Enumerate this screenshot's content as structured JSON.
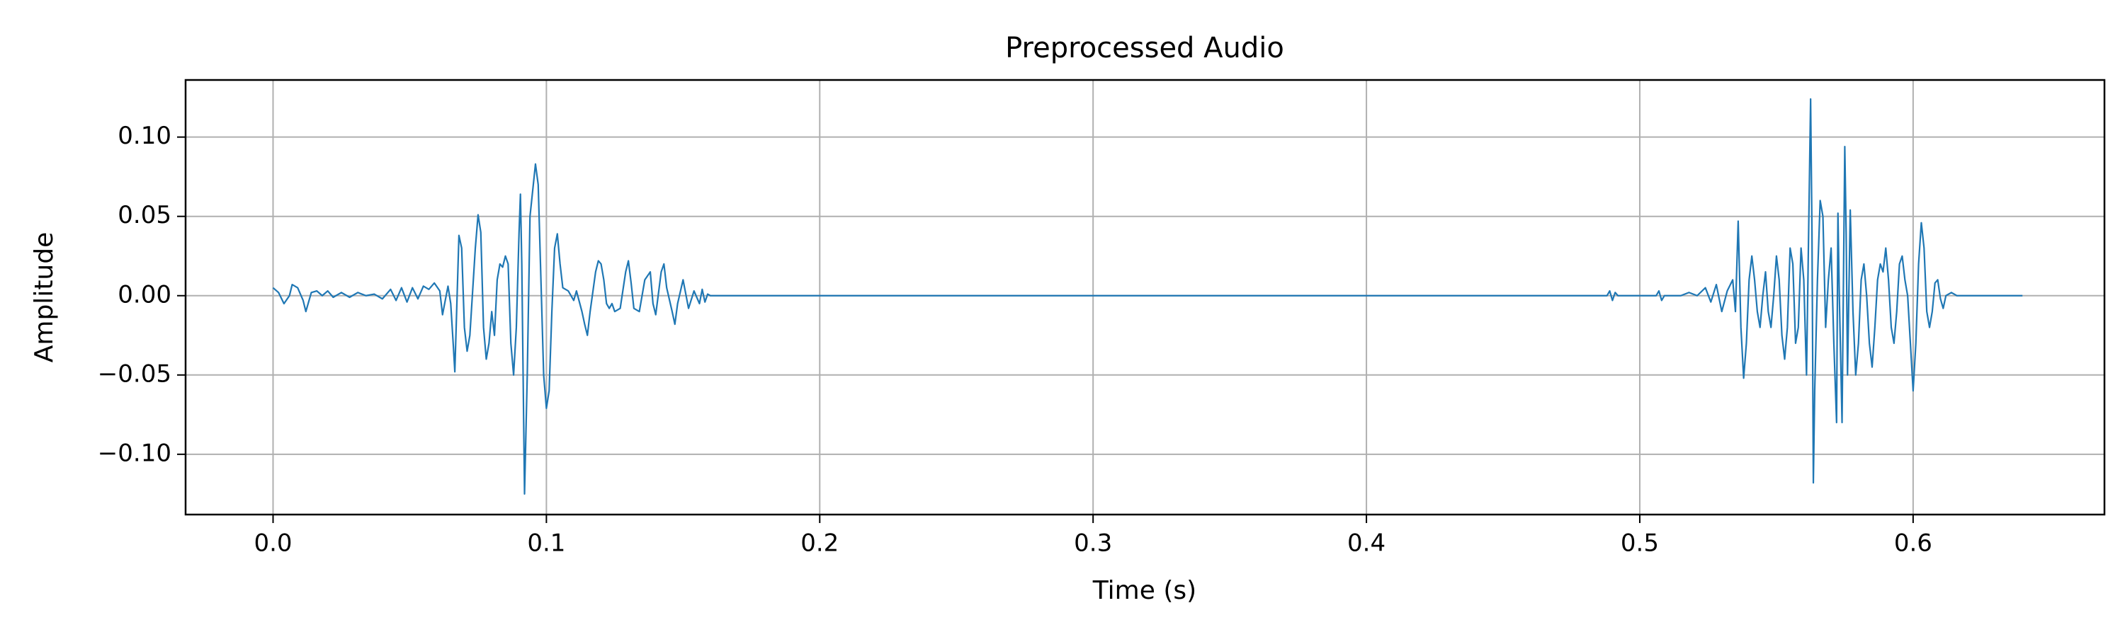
{
  "chart_data": {
    "type": "line",
    "title": "Preprocessed Audio",
    "xlabel": "Time (s)",
    "ylabel": "Amplitude",
    "color": "#1f77b4",
    "grid": true,
    "xlim": [
      -0.032,
      0.67
    ],
    "ylim": [
      -0.138,
      0.136
    ],
    "xticks": [
      {
        "value": 0,
        "label": "0.0"
      },
      0.1,
      0.2,
      0.3,
      0.4,
      0.5,
      0.6
    ],
    "yticks": [
      {
        "value": -0.1,
        "label": "−0.10"
      },
      {
        "value": -0.05,
        "label": "−0.05"
      },
      {
        "value": 0,
        "label": "0.00"
      },
      {
        "value": 0.05,
        "label": "0.05"
      },
      {
        "value": 0.1,
        "label": "0.10"
      }
    ],
    "x": [
      0.0,
      0.002,
      0.004,
      0.006,
      0.007,
      0.009,
      0.011,
      0.012,
      0.014,
      0.016,
      0.018,
      0.02,
      0.022,
      0.025,
      0.028,
      0.031,
      0.034,
      0.037,
      0.04,
      0.043,
      0.045,
      0.047,
      0.049,
      0.051,
      0.053,
      0.055,
      0.057,
      0.059,
      0.061,
      0.062,
      0.064,
      0.065,
      0.066,
      0.0665,
      0.068,
      0.069,
      0.07,
      0.071,
      0.072,
      0.074,
      0.075,
      0.076,
      0.077,
      0.078,
      0.079,
      0.08,
      0.081,
      0.082,
      0.083,
      0.084,
      0.085,
      0.086,
      0.087,
      0.088,
      0.089,
      0.09,
      0.0905,
      0.091,
      0.092,
      0.093,
      0.094,
      0.096,
      0.097,
      0.098,
      0.099,
      0.1,
      0.101,
      0.102,
      0.103,
      0.104,
      0.105,
      0.106,
      0.108,
      0.11,
      0.111,
      0.113,
      0.114,
      0.115,
      0.116,
      0.118,
      0.119,
      0.12,
      0.121,
      0.122,
      0.123,
      0.124,
      0.125,
      0.127,
      0.129,
      0.13,
      0.131,
      0.132,
      0.134,
      0.136,
      0.138,
      0.139,
      0.14,
      0.142,
      0.143,
      0.144,
      0.146,
      0.147,
      0.148,
      0.15,
      0.152,
      0.154,
      0.156,
      0.157,
      0.158,
      0.159,
      0.16,
      0.2,
      0.3,
      0.4,
      0.488,
      0.489,
      0.49,
      0.491,
      0.492,
      0.5,
      0.506,
      0.507,
      0.508,
      0.509,
      0.515,
      0.518,
      0.521,
      0.524,
      0.526,
      0.528,
      0.53,
      0.532,
      0.534,
      0.535,
      0.536,
      0.537,
      0.538,
      0.539,
      0.54,
      0.541,
      0.542,
      0.543,
      0.544,
      0.545,
      0.546,
      0.547,
      0.548,
      0.549,
      0.55,
      0.551,
      0.552,
      0.553,
      0.554,
      0.555,
      0.556,
      0.557,
      0.558,
      0.559,
      0.56,
      0.561,
      0.5625,
      0.563,
      0.5635,
      0.564,
      0.565,
      0.566,
      0.567,
      0.568,
      0.569,
      0.57,
      0.571,
      0.572,
      0.5725,
      0.573,
      0.574,
      0.575,
      0.5755,
      0.576,
      0.577,
      0.578,
      0.579,
      0.58,
      0.581,
      0.582,
      0.583,
      0.584,
      0.585,
      0.586,
      0.587,
      0.588,
      0.589,
      0.59,
      0.591,
      0.592,
      0.593,
      0.594,
      0.595,
      0.596,
      0.597,
      0.598,
      0.599,
      0.6,
      0.601,
      0.602,
      0.603,
      0.604,
      0.605,
      0.606,
      0.607,
      0.608,
      0.609,
      0.61,
      0.611,
      0.612,
      0.614,
      0.616,
      0.64
    ],
    "values": [
      0.005,
      0.002,
      -0.005,
      0.0,
      0.007,
      0.005,
      -0.003,
      -0.01,
      0.002,
      0.003,
      0.0,
      0.003,
      -0.001,
      0.002,
      -0.001,
      0.002,
      0.0,
      0.001,
      -0.002,
      0.004,
      -0.003,
      0.005,
      -0.004,
      0.005,
      -0.002,
      0.006,
      0.004,
      0.008,
      0.003,
      -0.012,
      0.006,
      -0.005,
      -0.033,
      -0.048,
      0.038,
      0.03,
      -0.02,
      -0.035,
      -0.025,
      0.03,
      0.051,
      0.04,
      -0.02,
      -0.04,
      -0.03,
      -0.01,
      -0.025,
      0.01,
      0.02,
      0.018,
      0.025,
      0.02,
      -0.03,
      -0.05,
      -0.02,
      0.04,
      0.064,
      0.02,
      -0.125,
      -0.05,
      0.05,
      0.083,
      0.07,
      0.01,
      -0.05,
      -0.071,
      -0.06,
      -0.01,
      0.03,
      0.039,
      0.02,
      0.005,
      0.003,
      -0.003,
      0.003,
      -0.01,
      -0.018,
      -0.025,
      -0.01,
      0.015,
      0.022,
      0.02,
      0.01,
      -0.005,
      -0.008,
      -0.005,
      -0.01,
      -0.008,
      0.015,
      0.022,
      0.008,
      -0.008,
      -0.01,
      0.01,
      0.015,
      -0.005,
      -0.012,
      0.015,
      0.02,
      0.005,
      -0.01,
      -0.018,
      -0.005,
      0.01,
      -0.008,
      0.003,
      -0.005,
      0.004,
      -0.004,
      0.001,
      0.0,
      0.0,
      0.0,
      0.0,
      0.0,
      0.003,
      -0.003,
      0.002,
      0.0,
      0.0,
      0.0,
      0.003,
      -0.003,
      0.0,
      0.0,
      0.002,
      0.0,
      0.005,
      -0.004,
      0.007,
      -0.01,
      0.003,
      0.01,
      -0.01,
      0.047,
      -0.02,
      -0.052,
      -0.03,
      0.01,
      0.025,
      0.01,
      -0.01,
      -0.02,
      0.0,
      0.015,
      -0.01,
      -0.02,
      0.0,
      0.025,
      0.01,
      -0.025,
      -0.04,
      -0.02,
      0.03,
      0.02,
      -0.03,
      -0.02,
      0.03,
      0.01,
      -0.05,
      0.124,
      0.04,
      -0.118,
      -0.06,
      0.01,
      0.06,
      0.05,
      -0.02,
      0.01,
      0.03,
      -0.03,
      -0.08,
      0.052,
      0.0,
      -0.08,
      0.094,
      0.04,
      -0.05,
      0.054,
      -0.01,
      -0.05,
      -0.03,
      0.01,
      0.02,
      0.0,
      -0.03,
      -0.045,
      -0.02,
      0.01,
      0.02,
      0.015,
      0.03,
      0.01,
      -0.02,
      -0.03,
      -0.01,
      0.02,
      0.025,
      0.01,
      0.0,
      -0.03,
      -0.06,
      -0.03,
      0.02,
      0.046,
      0.03,
      -0.01,
      -0.02,
      -0.01,
      0.008,
      0.01,
      -0.002,
      -0.008,
      0.0,
      0.002,
      0.0,
      0.0
    ]
  }
}
